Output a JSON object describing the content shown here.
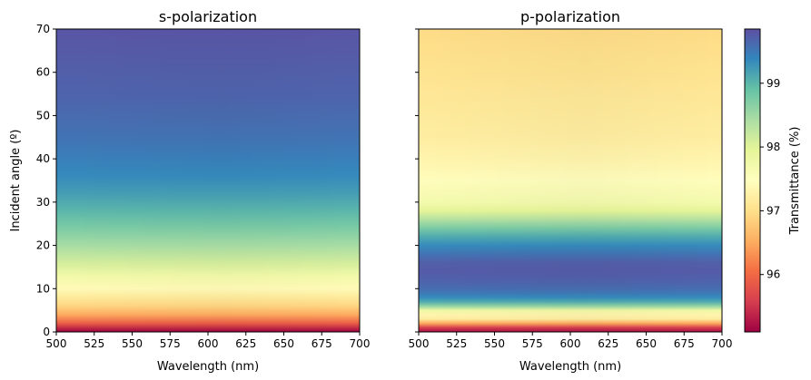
{
  "chart_data": {
    "type": "heatmap",
    "colormap": "Spectral",
    "colorbar": {
      "label": "Transmittance (%)",
      "range": [
        95.1,
        99.85
      ],
      "ticks": [
        96,
        97,
        98,
        99
      ],
      "tick_labels": [
        "96",
        "97",
        "98",
        "99"
      ]
    },
    "panels": [
      {
        "title": "s-polarization",
        "xlabel": "Wavelength (nm)",
        "ylabel": "Incident angle (º)",
        "xlim": [
          500,
          700
        ],
        "ylim": [
          0,
          70
        ],
        "xticks": [
          500,
          525,
          550,
          575,
          600,
          625,
          650,
          675,
          700
        ],
        "xtick_labels": [
          "500",
          "525",
          "550",
          "575",
          "600",
          "625",
          "650",
          "675",
          "700"
        ],
        "yticks": [
          0,
          10,
          20,
          30,
          40,
          50,
          60,
          70
        ],
        "ytick_labels": [
          "0",
          "10",
          "20",
          "30",
          "40",
          "50",
          "60",
          "70"
        ],
        "profile_angle": [
          0,
          2,
          4,
          6,
          8,
          10,
          13,
          16,
          20,
          24,
          28,
          32,
          36,
          40,
          45,
          50,
          55,
          60,
          65,
          70
        ],
        "profile_transmittance": [
          95.1,
          95.9,
          96.5,
          96.9,
          97.15,
          97.4,
          97.75,
          98.1,
          98.45,
          98.75,
          99.0,
          99.2,
          99.35,
          99.45,
          99.55,
          99.62,
          99.68,
          99.72,
          99.76,
          99.8
        ],
        "wavelength_modulation": 0.25
      },
      {
        "title": "p-polarization",
        "xlabel": "Wavelength (nm)",
        "ylabel": "",
        "xlim": [
          500,
          700
        ],
        "ylim": [
          0,
          70
        ],
        "xticks": [
          500,
          525,
          550,
          575,
          600,
          625,
          650,
          675,
          700
        ],
        "xtick_labels": [
          "500",
          "525",
          "550",
          "575",
          "600",
          "625",
          "650",
          "675",
          "700"
        ],
        "yticks": [
          0,
          10,
          20,
          30,
          40,
          50,
          60,
          70
        ],
        "ytick_labels": [
          "",
          "",
          "",
          "",
          "",
          "",
          "",
          ""
        ],
        "profile_angle": [
          0,
          1,
          2,
          3,
          4,
          5,
          6,
          7,
          8,
          9,
          10,
          12,
          14,
          16,
          18,
          20,
          22,
          24,
          26,
          28,
          30,
          35,
          40,
          45,
          50,
          55,
          60,
          65,
          70
        ],
        "profile_transmittance": [
          95.2,
          95.6,
          96.5,
          97.2,
          97.3,
          97.8,
          98.6,
          99.1,
          99.35,
          99.5,
          99.6,
          99.7,
          99.75,
          99.72,
          99.55,
          99.35,
          99.1,
          98.75,
          98.35,
          97.95,
          97.7,
          97.45,
          97.3,
          97.2,
          97.15,
          97.1,
          97.05,
          97.0,
          96.95
        ],
        "wavelength_modulation": 0.35
      }
    ]
  },
  "colors": {
    "spectral": [
      "#9e0142",
      "#d53e4f",
      "#f46d43",
      "#fdae61",
      "#fee08b",
      "#ffffbf",
      "#e6f598",
      "#abdda4",
      "#66c2a5",
      "#3288bd",
      "#5e4fa2"
    ]
  }
}
